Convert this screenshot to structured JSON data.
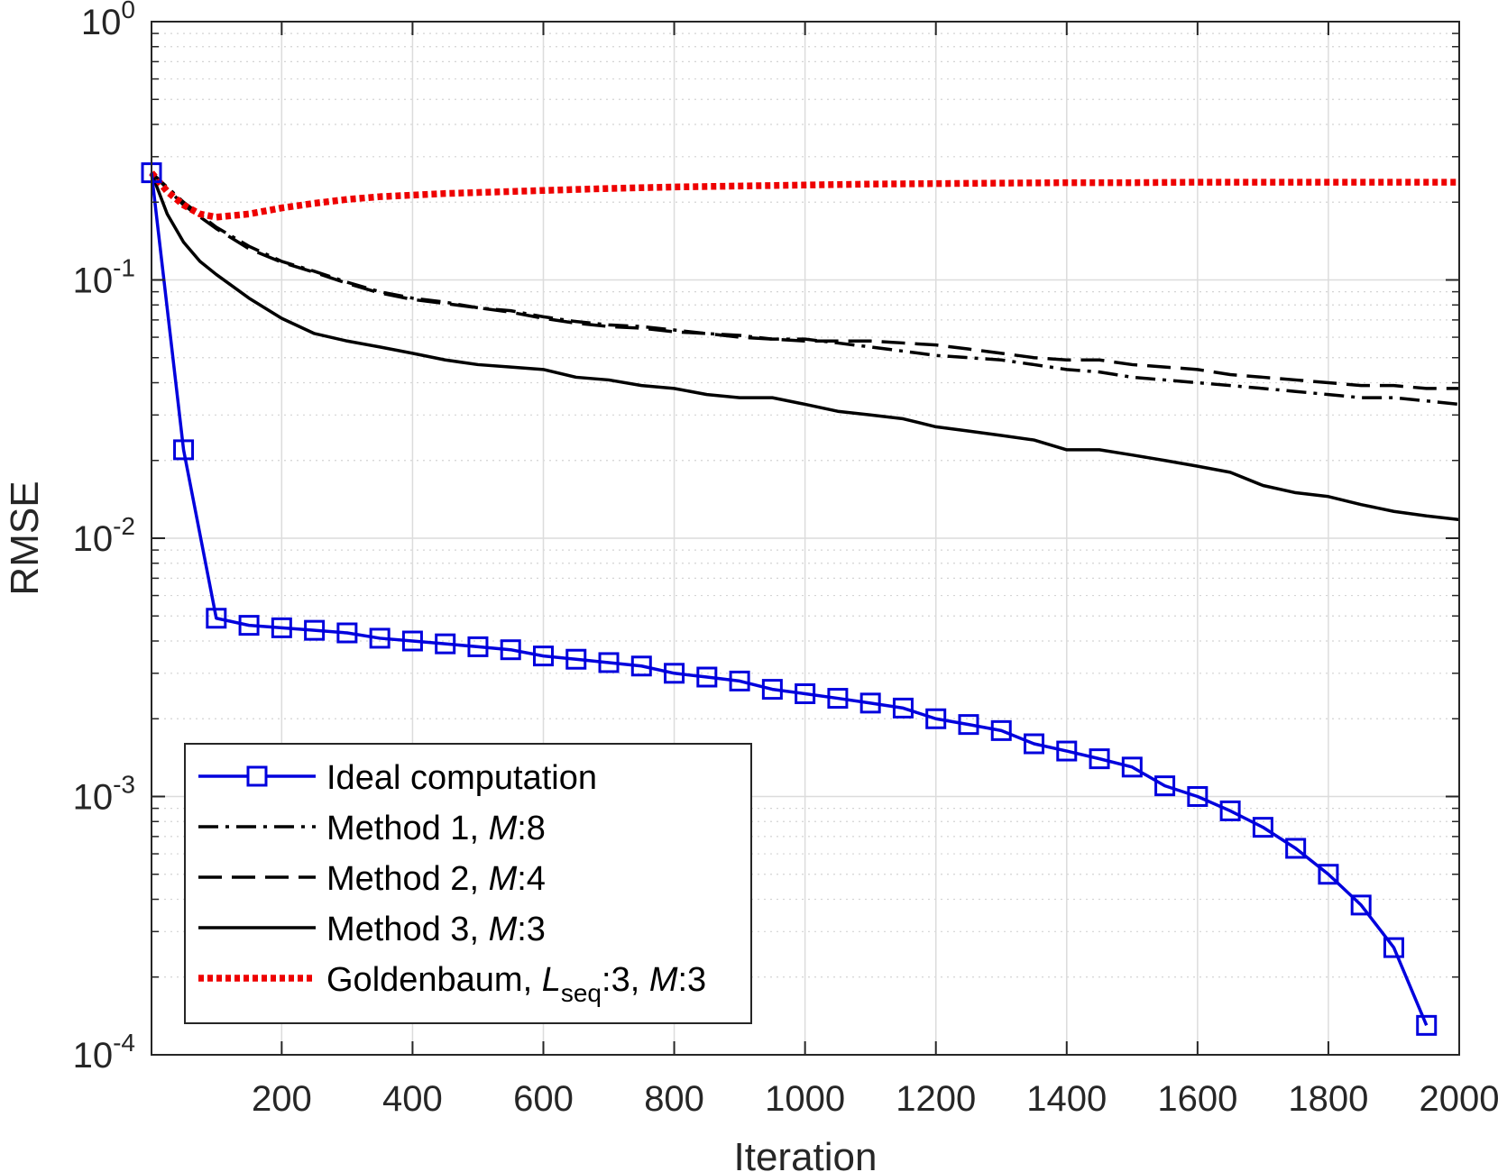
{
  "chart_data": {
    "type": "line",
    "xlabel": "Iteration",
    "ylabel": "RMSE",
    "xlim": [
      1,
      2000
    ],
    "ylim": [
      0.0001,
      1
    ],
    "yscale": "log",
    "grid": true,
    "minor_grid": true,
    "legend_position": "bottom-left",
    "x_ticks": [
      200,
      400,
      600,
      800,
      1000,
      1200,
      1400,
      1600,
      1800,
      2000
    ],
    "x_tick_labels": [
      "200",
      "400",
      "600",
      "800",
      "1000",
      "1200",
      "1400",
      "1600",
      "1800",
      "2000"
    ],
    "y_ticks": [
      0.0001,
      0.001,
      0.01,
      0.1,
      1
    ],
    "y_tick_labels": [
      {
        "base": "10",
        "exp": "-4"
      },
      {
        "base": "10",
        "exp": "-3"
      },
      {
        "base": "10",
        "exp": "-2"
      },
      {
        "base": "10",
        "exp": "-1"
      },
      {
        "base": "10",
        "exp": "0"
      }
    ],
    "series": [
      {
        "name": "Ideal computation",
        "legend_parts": [
          {
            "t": "Ideal computation"
          }
        ],
        "color": "#0000dd",
        "style": "solid-square",
        "x": [
          1,
          50,
          100,
          150,
          200,
          250,
          300,
          350,
          400,
          450,
          500,
          550,
          600,
          650,
          700,
          750,
          800,
          850,
          900,
          950,
          1000,
          1050,
          1100,
          1150,
          1200,
          1250,
          1300,
          1350,
          1400,
          1450,
          1500,
          1550,
          1600,
          1650,
          1700,
          1750,
          1800,
          1850,
          1900,
          1950
        ],
        "y": [
          0.26,
          0.022,
          0.0049,
          0.0046,
          0.0045,
          0.0044,
          0.0043,
          0.0041,
          0.004,
          0.0039,
          0.0038,
          0.0037,
          0.0035,
          0.0034,
          0.0033,
          0.0032,
          0.003,
          0.0029,
          0.0028,
          0.0026,
          0.0025,
          0.0024,
          0.0023,
          0.0022,
          0.002,
          0.0019,
          0.0018,
          0.0016,
          0.0015,
          0.0014,
          0.0013,
          0.0011,
          0.001,
          0.00088,
          0.00076,
          0.00063,
          0.0005,
          0.00038,
          0.00026,
          0.00013
        ]
      },
      {
        "name": "Method 1, M:8",
        "legend_parts": [
          {
            "t": "Method 1, "
          },
          {
            "t": "M",
            "i": true
          },
          {
            "t": ":8"
          }
        ],
        "color": "#000000",
        "style": "dashdot",
        "x": [
          1,
          50,
          100,
          150,
          200,
          250,
          300,
          350,
          400,
          450,
          500,
          550,
          600,
          650,
          700,
          750,
          800,
          850,
          900,
          950,
          1000,
          1050,
          1100,
          1150,
          1200,
          1250,
          1300,
          1350,
          1400,
          1450,
          1500,
          1550,
          1600,
          1650,
          1700,
          1750,
          1800,
          1850,
          1900,
          1950,
          2000
        ],
        "y": [
          0.26,
          0.2,
          0.16,
          0.135,
          0.118,
          0.108,
          0.098,
          0.09,
          0.085,
          0.082,
          0.078,
          0.076,
          0.072,
          0.069,
          0.067,
          0.066,
          0.064,
          0.062,
          0.061,
          0.059,
          0.059,
          0.057,
          0.055,
          0.053,
          0.051,
          0.05,
          0.049,
          0.047,
          0.045,
          0.044,
          0.042,
          0.041,
          0.04,
          0.039,
          0.038,
          0.037,
          0.036,
          0.035,
          0.035,
          0.034,
          0.033
        ]
      },
      {
        "name": "Method 2, M:4",
        "legend_parts": [
          {
            "t": "Method 2, "
          },
          {
            "t": "M",
            "i": true
          },
          {
            "t": ":4"
          }
        ],
        "color": "#000000",
        "style": "dashed",
        "x": [
          1,
          50,
          100,
          150,
          200,
          250,
          300,
          350,
          400,
          450,
          500,
          550,
          600,
          650,
          700,
          750,
          800,
          850,
          900,
          950,
          1000,
          1050,
          1100,
          1150,
          1200,
          1250,
          1300,
          1350,
          1400,
          1450,
          1500,
          1550,
          1600,
          1650,
          1700,
          1750,
          1800,
          1850,
          1900,
          1950,
          2000
        ],
        "y": [
          0.26,
          0.195,
          0.158,
          0.132,
          0.117,
          0.107,
          0.097,
          0.089,
          0.084,
          0.081,
          0.078,
          0.075,
          0.071,
          0.068,
          0.066,
          0.065,
          0.063,
          0.062,
          0.06,
          0.059,
          0.058,
          0.058,
          0.058,
          0.057,
          0.056,
          0.054,
          0.052,
          0.05,
          0.049,
          0.049,
          0.047,
          0.046,
          0.045,
          0.043,
          0.042,
          0.041,
          0.04,
          0.039,
          0.039,
          0.038,
          0.038
        ]
      },
      {
        "name": "Method 3, M:3",
        "legend_parts": [
          {
            "t": "Method 3, "
          },
          {
            "t": "M",
            "i": true
          },
          {
            "t": ":3"
          }
        ],
        "color": "#000000",
        "style": "solid",
        "x": [
          1,
          25,
          50,
          75,
          100,
          150,
          200,
          250,
          300,
          350,
          400,
          450,
          500,
          550,
          600,
          650,
          700,
          750,
          800,
          850,
          900,
          950,
          1000,
          1050,
          1100,
          1150,
          1200,
          1250,
          1300,
          1350,
          1400,
          1450,
          1500,
          1550,
          1600,
          1650,
          1700,
          1750,
          1800,
          1850,
          1900,
          1950,
          2000
        ],
        "y": [
          0.26,
          0.18,
          0.14,
          0.118,
          0.105,
          0.085,
          0.071,
          0.062,
          0.058,
          0.055,
          0.052,
          0.049,
          0.047,
          0.046,
          0.045,
          0.042,
          0.041,
          0.039,
          0.038,
          0.036,
          0.035,
          0.035,
          0.033,
          0.031,
          0.03,
          0.029,
          0.027,
          0.026,
          0.025,
          0.024,
          0.022,
          0.022,
          0.021,
          0.02,
          0.019,
          0.018,
          0.016,
          0.015,
          0.0145,
          0.0135,
          0.0127,
          0.0122,
          0.0118
        ]
      },
      {
        "name": "Goldenbaum, Lseq:3, M:3",
        "legend_parts": [
          {
            "t": "Goldenbaum, "
          },
          {
            "t": "L",
            "i": true
          },
          {
            "t": "seq",
            "sub": true
          },
          {
            "t": ":3, "
          },
          {
            "t": "M",
            "i": true
          },
          {
            "t": ":3"
          }
        ],
        "color": "#ee0000",
        "style": "dotted",
        "x": [
          1,
          25,
          50,
          75,
          100,
          150,
          200,
          250,
          300,
          350,
          400,
          450,
          500,
          550,
          600,
          700,
          800,
          900,
          1000,
          1100,
          1200,
          1300,
          1400,
          1500,
          1600,
          1700,
          1800,
          1900,
          2000
        ],
        "y": [
          0.26,
          0.22,
          0.195,
          0.18,
          0.175,
          0.18,
          0.19,
          0.198,
          0.205,
          0.21,
          0.213,
          0.216,
          0.218,
          0.22,
          0.222,
          0.226,
          0.229,
          0.231,
          0.233,
          0.235,
          0.236,
          0.237,
          0.238,
          0.238,
          0.239,
          0.239,
          0.239,
          0.239,
          0.239
        ]
      }
    ]
  }
}
